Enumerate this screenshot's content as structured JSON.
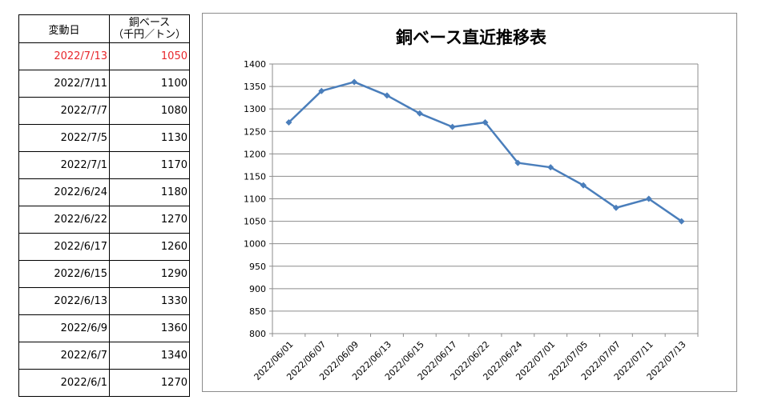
{
  "table": {
    "header": {
      "date": "変動日",
      "base_line1": "銅ベース",
      "base_line2": "（千円／トン）"
    },
    "rows": [
      {
        "date": "2022/7/13",
        "value": "1050",
        "highlight": true
      },
      {
        "date": "2022/7/11",
        "value": "1100"
      },
      {
        "date": "2022/7/7",
        "value": "1080"
      },
      {
        "date": "2022/7/5",
        "value": "1130"
      },
      {
        "date": "2022/7/1",
        "value": "1170"
      },
      {
        "date": "2022/6/24",
        "value": "1180"
      },
      {
        "date": "2022/6/22",
        "value": "1270"
      },
      {
        "date": "2022/6/17",
        "value": "1260"
      },
      {
        "date": "2022/6/15",
        "value": "1290"
      },
      {
        "date": "2022/6/13",
        "value": "1330"
      },
      {
        "date": "2022/6/9",
        "value": "1360"
      },
      {
        "date": "2022/6/7",
        "value": "1340"
      },
      {
        "date": "2022/6/1",
        "value": "1270"
      }
    ],
    "highlight_color": "#e8262b"
  },
  "chart_data": {
    "type": "line",
    "title": "銅ベース直近推移表",
    "xlabel": "",
    "ylabel": "",
    "x": [
      "2022/06/01",
      "2022/06/07",
      "2022/06/09",
      "2022/06/13",
      "2022/06/15",
      "2022/06/17",
      "2022/06/22",
      "2022/06/24",
      "2022/07/01",
      "2022/07/05",
      "2022/07/07",
      "2022/07/11",
      "2022/07/13"
    ],
    "series": [
      {
        "values": [
          1270,
          1340,
          1360,
          1330,
          1290,
          1260,
          1270,
          1180,
          1170,
          1130,
          1080,
          1100,
          1050
        ],
        "color": "#4a7ebb"
      }
    ],
    "ylim": [
      800,
      1400
    ],
    "yticks": [
      800,
      850,
      900,
      950,
      1000,
      1050,
      1100,
      1150,
      1200,
      1250,
      1300,
      1350,
      1400
    ],
    "grid": true,
    "marker": "diamond",
    "legend": "none"
  }
}
